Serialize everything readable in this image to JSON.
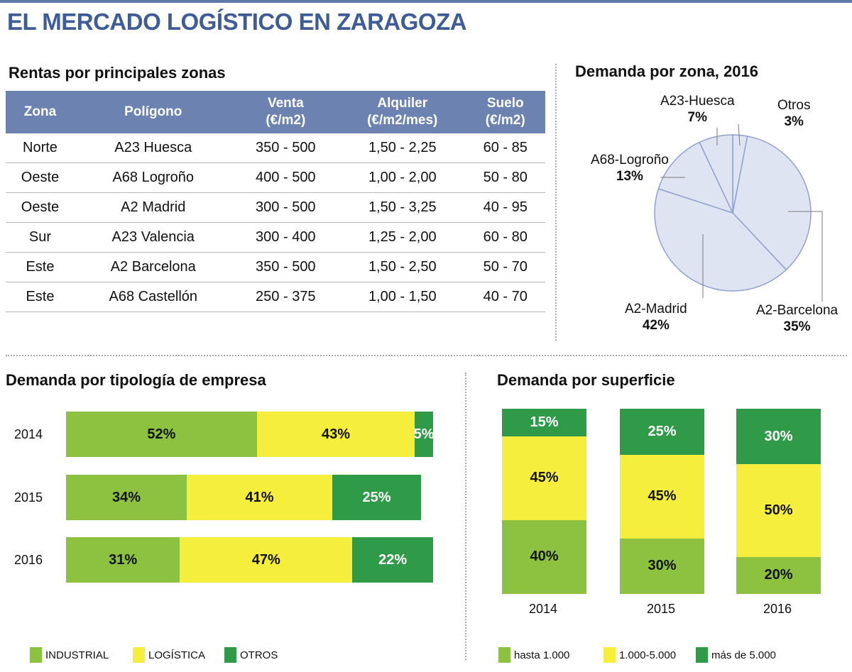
{
  "title": "EL MERCADO LOGÍSTICO EN ZARAGOZA",
  "colors": {
    "industrial": "#8cc23f",
    "logistica": "#f6ee3c",
    "otros": "#2f9a48",
    "header": "#6c83b2",
    "pie_fill": "#dfe4f3",
    "pie_stroke": "#8fa2cd"
  },
  "table": {
    "title": "Rentas por principales zonas",
    "headers": [
      "Zona",
      "Polígono",
      "Venta\n(€/m2)",
      "Alquiler\n(€/m2/mes)",
      "Suelo\n(€/m2)"
    ],
    "rows": [
      [
        "Norte",
        "A23 Huesca",
        "350 - 500",
        "1,50 - 2,25",
        "60 - 85"
      ],
      [
        "Oeste",
        "A68 Logroño",
        "400 - 500",
        "1,00 - 2,00",
        "50 - 80"
      ],
      [
        "Oeste",
        "A2 Madrid",
        "300 - 500",
        "1,50 - 3,25",
        "40 - 95"
      ],
      [
        "Sur",
        "A23 Valencia",
        "300 - 400",
        "1,25 - 2,00",
        "60 - 80"
      ],
      [
        "Este",
        "A2 Barcelona",
        "350 - 500",
        "1,50 - 2,50",
        "50 - 70"
      ],
      [
        "Este",
        "A68 Castellón",
        "250 - 375",
        "1,00 - 1,50",
        "40 - 70"
      ]
    ]
  },
  "chart_data": [
    {
      "type": "pie",
      "title": "Demanda por zona, 2016",
      "slices": [
        {
          "label": "Otros",
          "value": 3
        },
        {
          "label": "A2-Barcelona",
          "value": 35
        },
        {
          "label": "A2-Madrid",
          "value": 42
        },
        {
          "label": "A68-Logroño",
          "value": 13
        },
        {
          "label": "A23-Huesca",
          "value": 7
        }
      ]
    },
    {
      "type": "bar",
      "orientation": "horizontal",
      "stacked": true,
      "title": "Demanda por tipología de empresa",
      "categories": [
        "2014",
        "2015",
        "2016"
      ],
      "series": [
        {
          "name": "INDUSTRIAL",
          "values": [
            52,
            34,
            31
          ]
        },
        {
          "name": "LOGÍSTICA",
          "values": [
            43,
            41,
            47
          ]
        },
        {
          "name": "OTROS",
          "values": [
            5,
            25,
            22
          ]
        }
      ],
      "legend": "bottom-left"
    },
    {
      "type": "bar",
      "orientation": "vertical",
      "stacked": true,
      "title": "Demanda por superficie",
      "categories": [
        "2014",
        "2015",
        "2016"
      ],
      "series": [
        {
          "name": "hasta 1.000",
          "values": [
            40,
            30,
            20
          ]
        },
        {
          "name": "1.000-5.000",
          "values": [
            45,
            45,
            50
          ]
        },
        {
          "name": "más de 5.000",
          "values": [
            15,
            25,
            30
          ]
        }
      ],
      "legend": "bottom"
    }
  ]
}
